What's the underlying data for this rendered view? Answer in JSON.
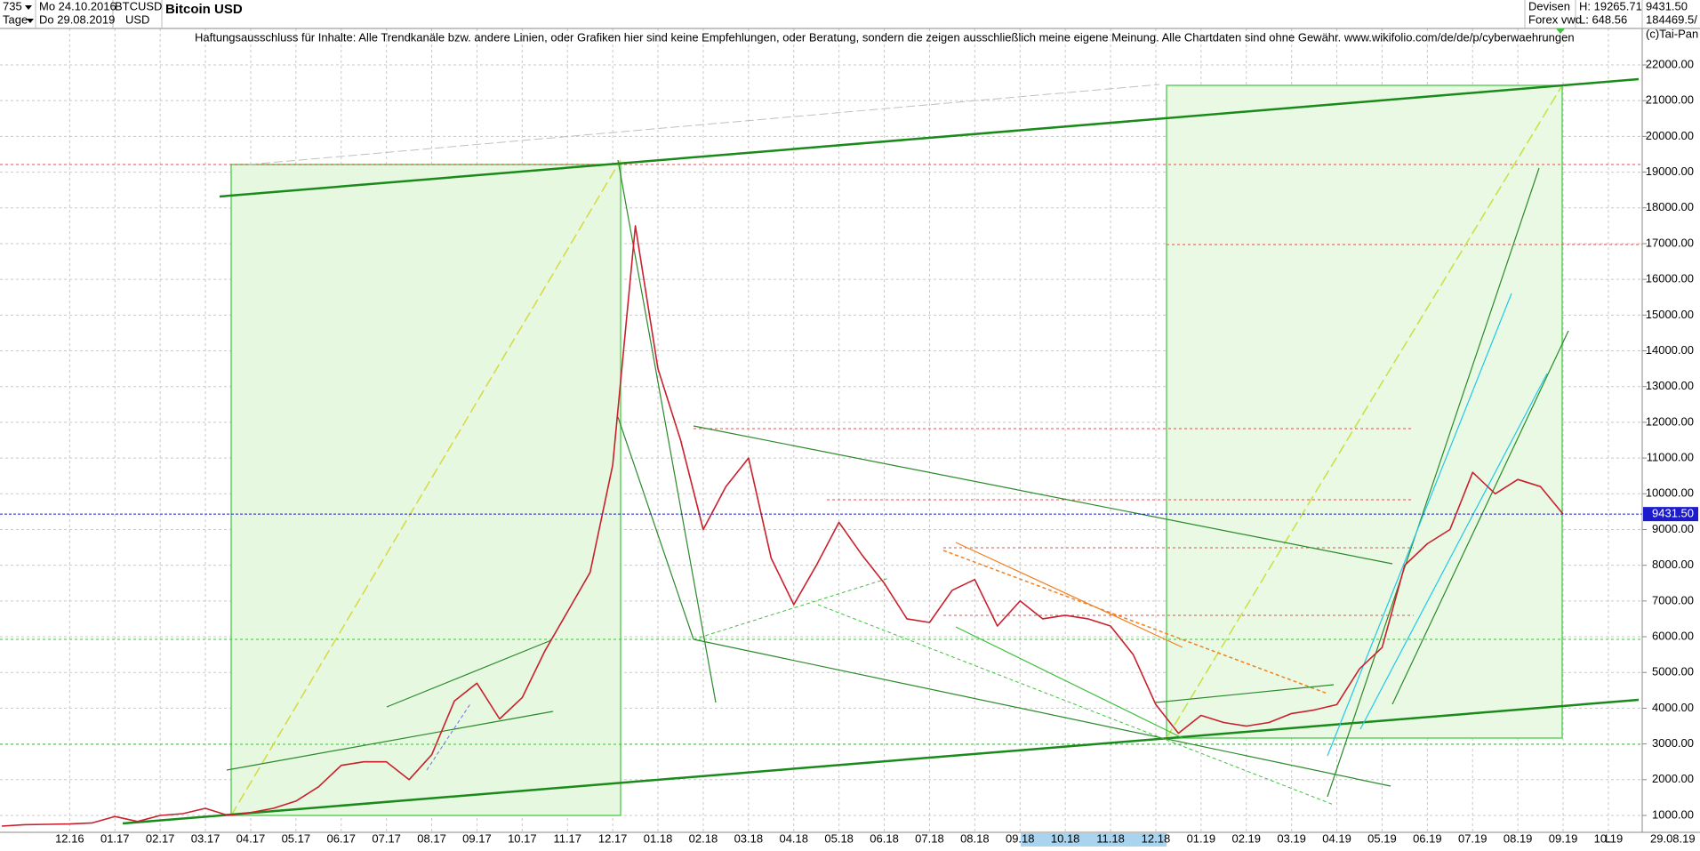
{
  "header": {
    "period_count": "735",
    "period_unit": "Tage",
    "start_date": "Mo 24.10.2016",
    "end_date": "Do 29.08.2019",
    "symbol": "BTCUSD",
    "currency": "USD",
    "name": "Bitcoin USD",
    "market": "Devisen",
    "source": "Forex vwd",
    "high": "H: 19265.71",
    "low": "L: 648.56",
    "last": "9431.50",
    "volume": "184469.5/"
  },
  "disclaimer": "Haftungsausschluss für Inhalte: Alle Trendkanäle bzw. andere Linien, oder Grafiken hier sind keine Empfehlungen, oder Beratung, sondern die zeigen ausschließlich meine eigene Meinung. Alle Chartdaten sind ohne Gewähr.  www.wikifolio.com/de/de/p/cyberwaehrungen",
  "copyright": "(c)Tai-Pan",
  "footer": {
    "date": "29.08.19",
    "scale": "L"
  },
  "chart_data": {
    "type": "line",
    "categories": [
      null,
      null,
      null,
      "12.16",
      null,
      "01.17",
      null,
      "02.17",
      null,
      "03.17",
      null,
      "04.17",
      null,
      "05.17",
      null,
      "06.17",
      null,
      "07.17",
      null,
      "08.17",
      null,
      "09.17",
      null,
      "10.17",
      null,
      "11.17",
      null,
      "12.17",
      null,
      "01.18",
      null,
      "02.18",
      null,
      "03.18",
      null,
      "04.18",
      null,
      "05.18",
      null,
      "06.18",
      null,
      "07.18",
      null,
      "08.18",
      null,
      "09.18",
      null,
      "10.18",
      null,
      "11.18",
      null,
      "12.18",
      null,
      "01.19",
      null,
      "02.19",
      null,
      "03.19",
      null,
      "04.19",
      null,
      "05.19",
      null,
      "06.19",
      null,
      "07.19",
      null,
      "08.19",
      null,
      "09.19",
      null,
      "10.19"
    ],
    "series": [
      {
        "name": "BTCUSD",
        "color": "#c8202c",
        "values": [
          700,
          740,
          750,
          760,
          790,
          970,
          830,
          1000,
          1050,
          1200,
          1000,
          1080,
          1200,
          1400,
          1800,
          2400,
          2500,
          2500,
          2000,
          2700,
          4200,
          4700,
          3700,
          4300,
          5600,
          6700,
          7800,
          10800,
          17500,
          13500,
          11500,
          9000,
          10200,
          11000,
          8200,
          6900,
          8000,
          9200,
          8300,
          7500,
          6500,
          6400,
          7300,
          7600,
          6300,
          7000,
          6500,
          6600,
          6500,
          6300,
          5500,
          4100,
          3300,
          3800,
          3600,
          3500,
          3600,
          3850,
          3950,
          4100,
          5100,
          5700,
          8000,
          8600,
          9000,
          10600,
          10000,
          10400,
          10200,
          9431.5,
          null,
          null
        ]
      }
    ],
    "ylim": [
      527,
      23020
    ],
    "yticks": [
      {
        "value": 1000,
        "label": "1000.00"
      },
      {
        "value": 2000,
        "label": "2000.00"
      },
      {
        "value": 3000,
        "label": "3000.00"
      },
      {
        "value": 4000,
        "label": "4000.00"
      },
      {
        "value": 5000,
        "label": "5000.00"
      },
      {
        "value": 6000,
        "label": "6000.00"
      },
      {
        "value": 7000,
        "label": "7000.00"
      },
      {
        "value": 8000,
        "label": "8000.00"
      },
      {
        "value": 9000,
        "label": "9000.00"
      },
      {
        "value": 10000,
        "label": "10000.00"
      },
      {
        "value": 11000,
        "label": "11000.00"
      },
      {
        "value": 12000,
        "label": "12000.00"
      },
      {
        "value": 13000,
        "label": "13000.00"
      },
      {
        "value": 14000,
        "label": "14000.00"
      },
      {
        "value": 15000,
        "label": "15000.00"
      },
      {
        "value": 16000,
        "label": "16000.00"
      },
      {
        "value": 17000,
        "label": "17000.00"
      },
      {
        "value": 18000,
        "label": "18000.00"
      },
      {
        "value": 19000,
        "label": "19000.00"
      },
      {
        "value": 20000,
        "label": "20000.00"
      },
      {
        "value": 21000,
        "label": "21000.00"
      },
      {
        "value": 22000,
        "label": "22000.00"
      }
    ],
    "last_price": {
      "value": 9431.5,
      "label": "9431.50",
      "color": "#1c1ccc"
    },
    "grid": true
  }
}
